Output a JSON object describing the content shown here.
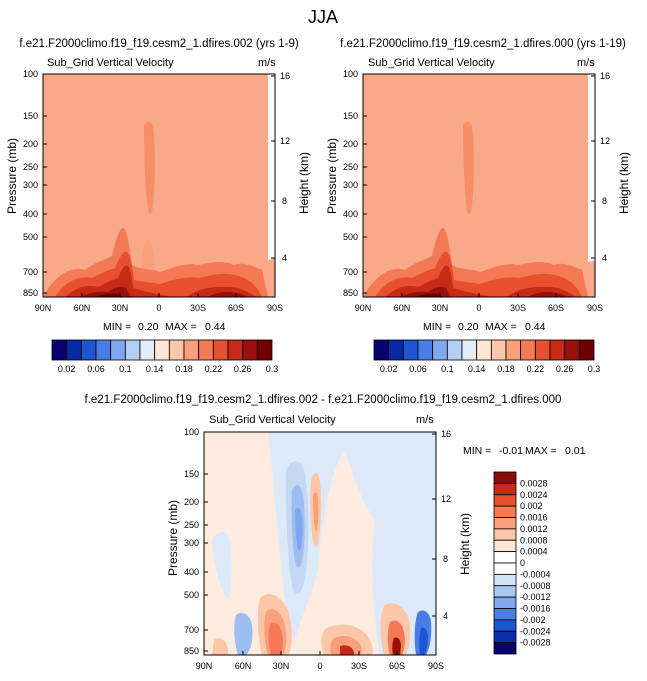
{
  "page_title": "JJA",
  "colors": {
    "blue_red_12": [
      "#08006e",
      "#0829a5",
      "#1f55cf",
      "#4a7ee6",
      "#7fa6f0",
      "#b4cdf5",
      "#e3edf8",
      "#fde6d4",
      "#fcc6a8",
      "#f8a07c",
      "#f47a56",
      "#e6502f",
      "#c72a17",
      "#9b0f0d",
      "#6e0000"
    ],
    "diff_ramp": [
      "#08006e",
      "#0c2ea8",
      "#1f55cf",
      "#4a7ee6",
      "#7fa6f0",
      "#aac8f4",
      "#d4e4f8",
      "#ffffff",
      "#fde6d4",
      "#fcc6a8",
      "#f8a07c",
      "#f47a56",
      "#e6502f",
      "#c72a17",
      "#8b0a0a"
    ]
  },
  "chart_data": [
    {
      "type": "heatmap",
      "title": "f.e21.F2000climo.f19_f19.cesm2_1.dfires.002 (yrs 1-9)",
      "subtitle_left": "Sub_Grid Vertical Velocity",
      "subtitle_right": "m/s",
      "ylabel": "Pressure (mb)",
      "ylabel_right": "Height (km)",
      "x_ticks": [
        "90N",
        "60N",
        "30N",
        "0",
        "30S",
        "60S",
        "90S"
      ],
      "y_ticks": [
        "100",
        "150",
        "200",
        "250",
        "300",
        "400",
        "500",
        "700",
        "850"
      ],
      "y_right_ticks": [
        "16",
        "12",
        "8",
        "4"
      ],
      "min_label": "MIN =",
      "min_value": "0.20",
      "max_label": "MAX =",
      "max_value": "0.44",
      "colorbar_labels": [
        "0.02",
        "0.06",
        "0.1",
        "0.14",
        "0.18",
        "0.22",
        "0.26",
        "0.3"
      ]
    },
    {
      "type": "heatmap",
      "title": "f.e21.F2000climo.f19_f19.cesm2_1.dfires.000 (yrs 1-19)",
      "subtitle_left": "Sub_Grid Vertical Velocity",
      "subtitle_right": "m/s",
      "ylabel": "Pressure (mb)",
      "ylabel_right": "Height (km)",
      "x_ticks": [
        "90N",
        "60N",
        "30N",
        "0",
        "30S",
        "60S",
        "90S"
      ],
      "y_ticks": [
        "100",
        "150",
        "200",
        "250",
        "300",
        "400",
        "500",
        "700",
        "850"
      ],
      "y_right_ticks": [
        "16",
        "12",
        "8",
        "4"
      ],
      "min_label": "MIN =",
      "min_value": "0.20",
      "max_label": "MAX =",
      "max_value": "0.44",
      "colorbar_labels": [
        "0.02",
        "0.06",
        "0.1",
        "0.14",
        "0.18",
        "0.22",
        "0.26",
        "0.3"
      ]
    },
    {
      "type": "heatmap",
      "title": "f.e21.F2000climo.f19_f19.cesm2_1.dfires.002 - f.e21.F2000climo.f19_f19.cesm2_1.dfires.000",
      "subtitle_left": "Sub_Grid Vertical Velocity",
      "subtitle_right": "m/s",
      "ylabel": "Pressure (mb)",
      "ylabel_right": "Height (km)",
      "x_ticks": [
        "90N",
        "60N",
        "30N",
        "0",
        "30S",
        "60S",
        "90S"
      ],
      "y_ticks": [
        "100",
        "150",
        "200",
        "250",
        "300",
        "400",
        "500",
        "700",
        "850"
      ],
      "y_right_ticks": [
        "16",
        "12",
        "8",
        "4"
      ],
      "min_label": "MIN =",
      "min_value": "-0.01",
      "max_label": "MAX =",
      "max_value": "0.01",
      "colorbar_labels": [
        "0.0028",
        "0.0024",
        "0.002",
        "0.0016",
        "0.0012",
        "0.0008",
        "0.0004",
        "0",
        "-0.0004",
        "-0.0008",
        "-0.0012",
        "-0.0016",
        "-0.002",
        "-0.0024",
        "-0.0028"
      ]
    }
  ]
}
